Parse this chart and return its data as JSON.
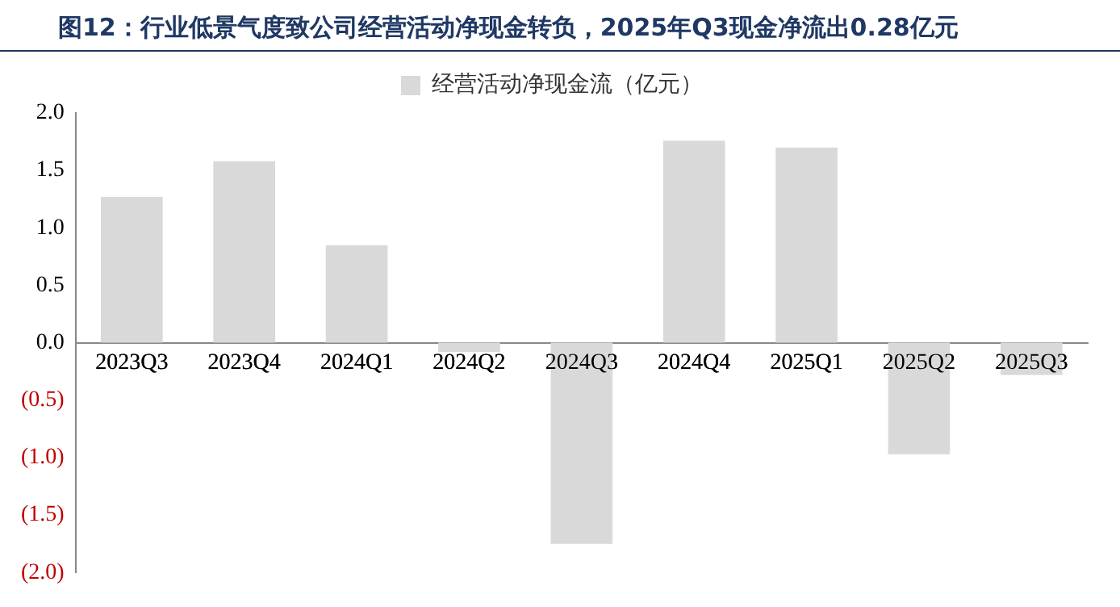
{
  "chart_data": {
    "type": "bar",
    "title": "图12：行业低景气度致公司经营活动净现金转负，2025年Q3现金净流出0.28亿元",
    "categories": [
      "2023Q3",
      "2023Q4",
      "2024Q1",
      "2024Q2",
      "2024Q3",
      "2024Q4",
      "2025Q1",
      "2025Q2",
      "2025Q3"
    ],
    "series": [
      {
        "name": "经营活动净现金流（亿元）",
        "color": "#d9d9d9",
        "values": [
          1.27,
          1.58,
          0.85,
          -0.08,
          -1.75,
          1.76,
          1.7,
          -0.97,
          -0.28
        ]
      }
    ],
    "ylim": [
      -2,
      2
    ],
    "yticks": [
      {
        "value": 2,
        "label": "2.0"
      },
      {
        "value": 1.5,
        "label": "1.5"
      },
      {
        "value": 1,
        "label": "1.0"
      },
      {
        "value": 0.5,
        "label": "0.5"
      },
      {
        "value": 0,
        "label": "0.0"
      },
      {
        "value": -0.5,
        "label": "(0.5)"
      },
      {
        "value": -1,
        "label": "(1.0)"
      },
      {
        "value": -1.5,
        "label": "(1.5)"
      },
      {
        "value": -2,
        "label": "(2.0)"
      }
    ],
    "legend": "top",
    "grid": false
  }
}
